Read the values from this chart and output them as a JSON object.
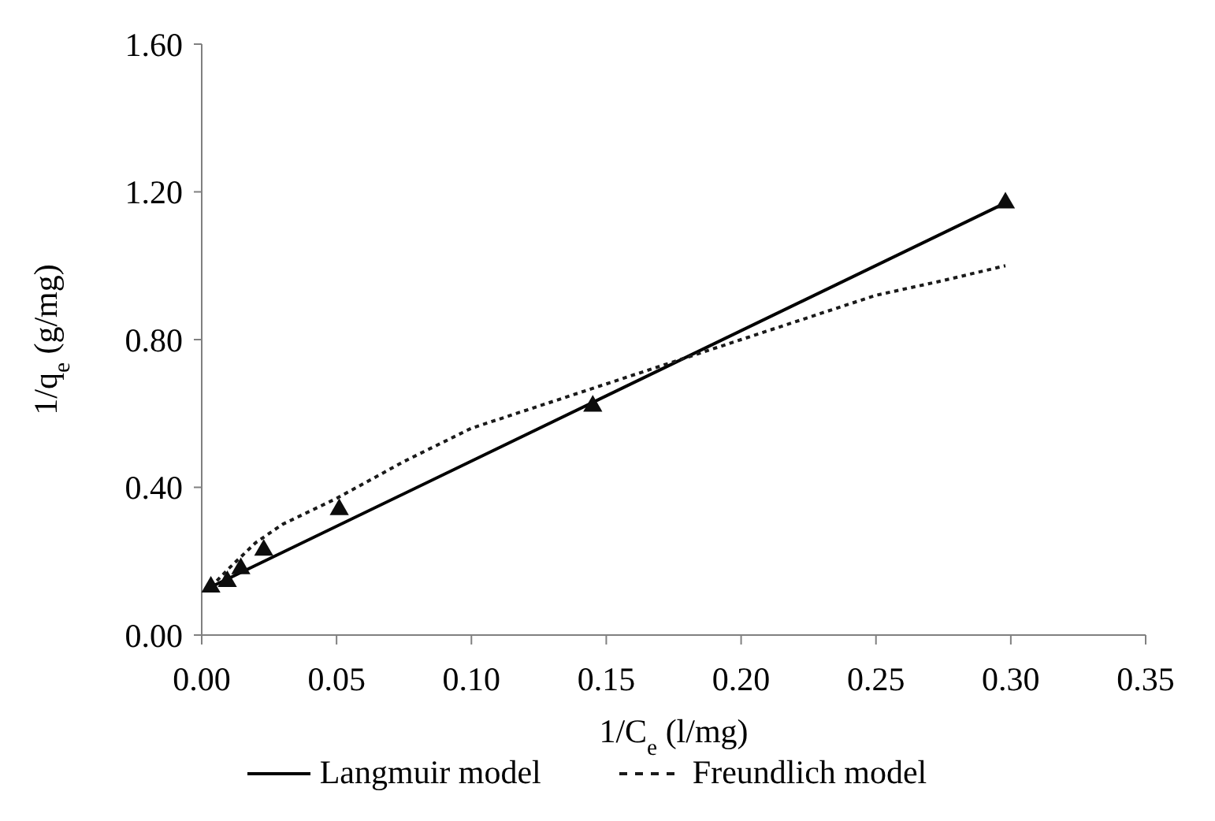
{
  "chart_data": {
    "type": "scatter",
    "xlabel": "1/C$_{e}$ (l/mg)",
    "ylabel": "1/q$_{e}$ (g/mg)",
    "xlim": [
      0,
      0.35
    ],
    "xticks": [
      {
        "value": 0,
        "label": "0.00"
      },
      {
        "value": 0.05,
        "label": "0.05"
      },
      {
        "value": 0.1,
        "label": "0.10"
      },
      {
        "value": 0.15,
        "label": "0.15"
      },
      {
        "value": 0.2,
        "label": "0.20"
      },
      {
        "value": 0.25,
        "label": "0.25"
      },
      {
        "value": 0.3,
        "label": "0.30"
      },
      {
        "value": 0.35,
        "label": "0.35"
      }
    ],
    "ylim": [
      0,
      1.6
    ],
    "yticks": [
      {
        "value": 0,
        "label": "0.00"
      },
      {
        "value": 0.4,
        "label": "0.40"
      },
      {
        "value": 0.8,
        "label": "0.80"
      },
      {
        "value": 1.2,
        "label": "1.20"
      },
      {
        "value": 1.6,
        "label": "1.60"
      }
    ],
    "grid": false,
    "legend": "bottom",
    "series": [
      {
        "type": "line",
        "name": "Langmuir model",
        "color": "#000000",
        "marker": "none",
        "line_style": "solid",
        "x": [
          0.0034,
          0.298
        ],
        "values": [
          0.13,
          1.17
        ]
      },
      {
        "type": "line",
        "name": "Freundlich model",
        "color": "#1a1a1a",
        "marker": "none",
        "line_style": "dashed",
        "x": [
          0.0034,
          0.01,
          0.02,
          0.03,
          0.05,
          0.075,
          0.1,
          0.125,
          0.15,
          0.175,
          0.2,
          0.225,
          0.25,
          0.275,
          0.298
        ],
        "values": [
          0.13,
          0.18,
          0.25,
          0.3,
          0.37,
          0.47,
          0.56,
          0.62,
          0.68,
          0.74,
          0.8,
          0.86,
          0.92,
          0.96,
          1.0
        ]
      },
      {
        "type": "scatter",
        "color": "#0d0d0d",
        "marker": "triangle",
        "x": [
          0.0034,
          0.0095,
          0.0145,
          0.023,
          0.051,
          0.145,
          0.298
        ],
        "values": [
          0.13,
          0.145,
          0.18,
          0.23,
          0.34,
          0.62,
          1.17
        ]
      }
    ]
  }
}
